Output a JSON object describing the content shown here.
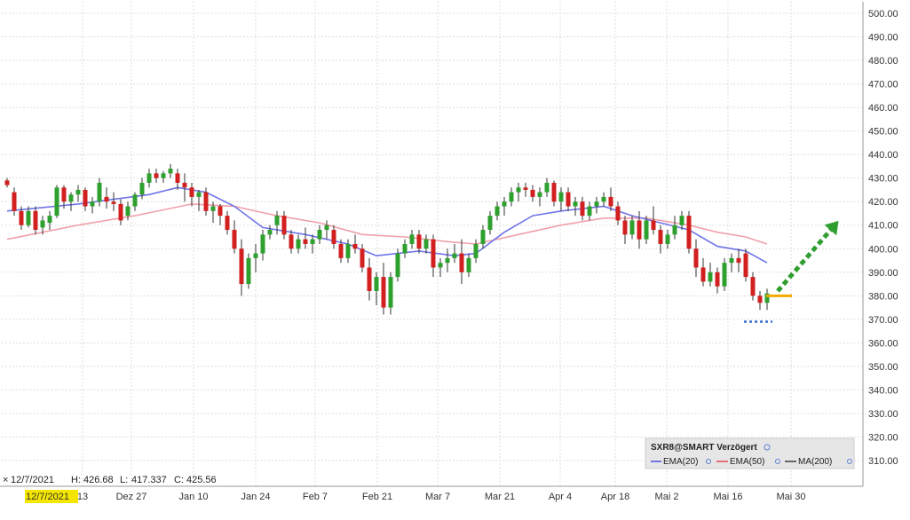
{
  "chart_data": {
    "type": "candlestick",
    "symbol_label": "SXR8@SMART Verzögert",
    "ylim": [
      300,
      505
    ],
    "yticks": [
      "310.00",
      "320.00",
      "330.00",
      "340.00",
      "350.00",
      "360.00",
      "370.00",
      "380.00",
      "390.00",
      "400.00",
      "410.00",
      "420.00",
      "430.00",
      "440.00",
      "450.00",
      "460.00",
      "470.00",
      "480.00",
      "490.00",
      "500.00"
    ],
    "xtick_labels": [
      "13",
      "Dez 27",
      "Jan 10",
      "Jan 24",
      "Feb 7",
      "Feb 21",
      "Mar 7",
      "Mar 21",
      "Apr 4",
      "Apr 18",
      "Mai 2",
      "Mai 16",
      "Mai 30"
    ],
    "highlighted_date": "12/7/2021",
    "ohlc_readout": {
      "date": "12/7/2021",
      "high_label": "H:",
      "high": "426.68",
      "low_label": "L:",
      "low": "417.337",
      "close_label": "C:",
      "close": "425.56"
    },
    "legend": [
      {
        "name": "EMA(20)",
        "color": "#6f74e8"
      },
      {
        "name": "EMA(50)",
        "color": "#e8707c"
      },
      {
        "name": "MA(200)",
        "color": "#666666"
      }
    ],
    "colors": {
      "up": "#2ea02e",
      "down": "#d21f1f",
      "ema20": "#6f74e8",
      "ema50": "#f0a0aa",
      "target_line": "#f2a900",
      "support_line": "#3a6fd8",
      "arrow": "#2f9e2f",
      "highlight": "#f4e600"
    },
    "candles": [
      [
        0,
        429,
        430,
        426,
        427
      ],
      [
        1,
        424,
        426,
        414,
        416
      ],
      [
        2,
        416,
        418,
        408,
        410
      ],
      [
        3,
        410,
        418,
        409,
        416
      ],
      [
        4,
        416,
        418,
        406,
        408
      ],
      [
        5,
        409,
        414,
        406,
        412
      ],
      [
        6,
        411,
        416,
        408,
        414
      ],
      [
        7,
        414,
        427,
        413,
        426
      ],
      [
        8,
        426,
        427,
        417,
        420
      ],
      [
        9,
        420,
        424,
        416,
        423
      ],
      [
        10,
        423,
        427,
        420,
        425
      ],
      [
        11,
        425,
        426,
        416,
        418
      ],
      [
        12,
        418,
        422,
        415,
        420
      ],
      [
        13,
        420,
        430,
        418,
        428
      ],
      [
        14,
        422,
        426,
        417,
        420
      ],
      [
        15,
        420,
        424,
        416,
        419
      ],
      [
        16,
        419,
        421,
        410,
        412
      ],
      [
        17,
        414,
        420,
        412,
        418
      ],
      [
        18,
        418,
        424,
        416,
        423
      ],
      [
        19,
        423,
        430,
        421,
        428
      ],
      [
        20,
        428,
        434,
        426,
        432
      ],
      [
        21,
        432,
        434,
        428,
        430
      ],
      [
        22,
        430,
        433,
        428,
        432
      ],
      [
        23,
        432,
        436,
        430,
        434
      ],
      [
        24,
        432,
        434,
        425,
        428
      ],
      [
        25,
        428,
        432,
        420,
        426
      ],
      [
        26,
        426,
        428,
        418,
        422
      ],
      [
        27,
        422,
        425,
        416,
        424
      ],
      [
        28,
        424,
        426,
        414,
        416
      ],
      [
        29,
        416,
        420,
        411,
        418
      ],
      [
        30,
        418,
        419,
        410,
        414
      ],
      [
        31,
        414,
        416,
        406,
        408
      ],
      [
        32,
        408,
        412,
        398,
        400
      ],
      [
        33,
        400,
        404,
        380,
        385
      ],
      [
        34,
        385,
        398,
        383,
        396
      ],
      [
        35,
        396,
        402,
        390,
        398
      ],
      [
        36,
        398,
        408,
        395,
        406
      ],
      [
        37,
        406,
        410,
        404,
        408
      ],
      [
        38,
        410,
        416,
        406,
        414
      ],
      [
        39,
        414,
        416,
        404,
        406
      ],
      [
        40,
        406,
        408,
        398,
        400
      ],
      [
        41,
        400,
        406,
        398,
        404
      ],
      [
        42,
        404,
        409,
        400,
        402
      ],
      [
        43,
        402,
        406,
        398,
        404
      ],
      [
        44,
        404,
        410,
        402,
        408
      ],
      [
        45,
        408,
        412,
        404,
        410
      ],
      [
        46,
        408,
        410,
        400,
        402
      ],
      [
        47,
        402,
        404,
        394,
        396
      ],
      [
        48,
        396,
        404,
        394,
        402
      ],
      [
        49,
        402,
        406,
        398,
        400
      ],
      [
        50,
        400,
        402,
        390,
        392
      ],
      [
        51,
        392,
        396,
        378,
        382
      ],
      [
        52,
        382,
        390,
        376,
        388
      ],
      [
        53,
        388,
        394,
        372,
        375
      ],
      [
        54,
        375,
        390,
        372,
        388
      ],
      [
        55,
        388,
        400,
        386,
        398
      ],
      [
        56,
        398,
        404,
        396,
        402
      ],
      [
        57,
        402,
        408,
        400,
        406
      ],
      [
        58,
        406,
        408,
        398,
        400
      ],
      [
        59,
        400,
        406,
        398,
        404
      ],
      [
        60,
        404,
        406,
        388,
        392
      ],
      [
        61,
        392,
        396,
        388,
        394
      ],
      [
        62,
        394,
        400,
        390,
        396
      ],
      [
        63,
        396,
        402,
        394,
        398
      ],
      [
        64,
        398,
        404,
        385,
        390
      ],
      [
        65,
        390,
        398,
        388,
        396
      ],
      [
        66,
        396,
        404,
        394,
        402
      ],
      [
        67,
        402,
        410,
        400,
        408
      ],
      [
        68,
        408,
        416,
        406,
        414
      ],
      [
        69,
        414,
        420,
        412,
        418
      ],
      [
        70,
        418,
        422,
        414,
        420
      ],
      [
        71,
        420,
        426,
        418,
        424
      ],
      [
        72,
        424,
        428,
        420,
        426
      ],
      [
        73,
        426,
        428,
        422,
        425
      ],
      [
        74,
        425,
        427,
        420,
        422
      ],
      [
        75,
        422,
        426,
        418,
        424
      ],
      [
        76,
        424,
        430,
        422,
        428
      ],
      [
        77,
        428,
        429,
        418,
        420
      ],
      [
        78,
        420,
        426,
        416,
        424
      ],
      [
        79,
        424,
        426,
        416,
        418
      ],
      [
        80,
        418,
        422,
        414,
        420
      ],
      [
        81,
        420,
        422,
        412,
        414
      ],
      [
        82,
        414,
        420,
        412,
        418
      ],
      [
        83,
        418,
        422,
        415,
        420
      ],
      [
        84,
        420,
        424,
        418,
        422
      ],
      [
        85,
        422,
        426,
        416,
        418
      ],
      [
        86,
        418,
        420,
        410,
        412
      ],
      [
        87,
        412,
        414,
        402,
        406
      ],
      [
        88,
        406,
        414,
        404,
        412
      ],
      [
        89,
        412,
        416,
        400,
        404
      ],
      [
        90,
        404,
        414,
        402,
        412
      ],
      [
        91,
        412,
        418,
        406,
        408
      ],
      [
        92,
        408,
        410,
        398,
        402
      ],
      [
        93,
        402,
        408,
        400,
        406
      ],
      [
        94,
        406,
        414,
        404,
        410
      ],
      [
        95,
        410,
        416,
        408,
        414
      ],
      [
        96,
        414,
        416,
        398,
        400
      ],
      [
        97,
        400,
        404,
        388,
        392
      ],
      [
        98,
        392,
        396,
        384,
        386
      ],
      [
        99,
        386,
        394,
        384,
        390
      ],
      [
        100,
        390,
        392,
        381,
        384
      ],
      [
        101,
        384,
        396,
        382,
        394
      ],
      [
        102,
        394,
        398,
        390,
        396
      ],
      [
        103,
        396,
        400,
        390,
        394
      ],
      [
        104,
        398,
        400,
        386,
        388
      ],
      [
        105,
        388,
        390,
        378,
        380
      ],
      [
        106,
        380,
        382,
        374,
        377
      ],
      [
        107,
        377,
        383,
        374,
        381
      ]
    ],
    "ema20": [
      [
        0,
        416
      ],
      [
        10,
        419
      ],
      [
        20,
        423
      ],
      [
        24,
        426
      ],
      [
        28,
        424
      ],
      [
        32,
        418
      ],
      [
        36,
        409
      ],
      [
        42,
        406
      ],
      [
        48,
        402
      ],
      [
        52,
        397
      ],
      [
        58,
        399
      ],
      [
        63,
        397
      ],
      [
        66,
        398
      ],
      [
        70,
        407
      ],
      [
        74,
        414
      ],
      [
        78,
        416
      ],
      [
        84,
        418
      ],
      [
        88,
        414
      ],
      [
        92,
        411
      ],
      [
        96,
        408
      ],
      [
        100,
        401
      ],
      [
        104,
        399
      ],
      [
        107,
        394
      ]
    ],
    "ema50": [
      [
        0,
        404
      ],
      [
        10,
        410
      ],
      [
        18,
        414
      ],
      [
        26,
        419
      ],
      [
        32,
        418
      ],
      [
        38,
        414
      ],
      [
        44,
        411
      ],
      [
        50,
        406
      ],
      [
        56,
        405
      ],
      [
        62,
        403
      ],
      [
        66,
        402
      ],
      [
        72,
        406
      ],
      [
        78,
        410
      ],
      [
        84,
        413
      ],
      [
        90,
        413
      ],
      [
        96,
        410
      ],
      [
        100,
        407
      ],
      [
        104,
        405
      ],
      [
        107,
        402
      ]
    ],
    "annotations": {
      "target_price": 380,
      "support_price": 369,
      "arrow_start": 382,
      "arrow_end": 409
    }
  }
}
